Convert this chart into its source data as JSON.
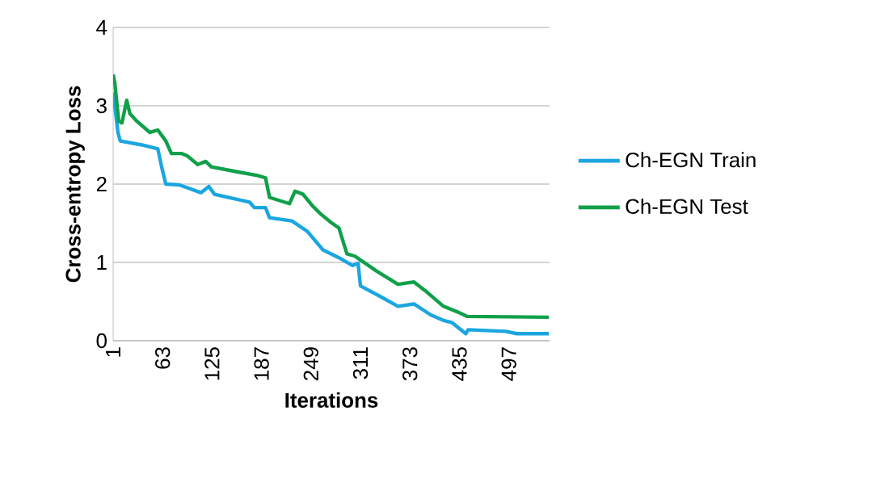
{
  "chart_data": {
    "type": "line",
    "xlabel": "Iterations",
    "ylabel": "Cross-entropy Loss",
    "xlim": [
      1,
      548
    ],
    "xticks": [
      1,
      63,
      125,
      187,
      249,
      311,
      373,
      435,
      497
    ],
    "ylim": [
      0,
      4
    ],
    "yticks": [
      0,
      1,
      2,
      3,
      4
    ],
    "grid": "y",
    "legend": "right",
    "marker": "none",
    "line_style": "solid",
    "series": [
      {
        "name": "Ch-EGN Train",
        "color": "#1ba6e0",
        "x": [
          1,
          7,
          10,
          37,
          57,
          62,
          67,
          84,
          111,
          121,
          128,
          172,
          178,
          192,
          197,
          225,
          244,
          264,
          284,
          301,
          308,
          311,
          335,
          358,
          378,
          399,
          415,
          426,
          443,
          446,
          493,
          507,
          547
        ],
        "values": [
          3.17,
          2.66,
          2.55,
          2.5,
          2.45,
          2.21,
          2.0,
          1.99,
          1.89,
          1.97,
          1.87,
          1.77,
          1.7,
          1.7,
          1.57,
          1.53,
          1.4,
          1.16,
          1.06,
          0.96,
          0.99,
          0.7,
          0.57,
          0.44,
          0.47,
          0.33,
          0.26,
          0.23,
          0.09,
          0.14,
          0.12,
          0.09,
          0.09
        ]
      },
      {
        "name": "Ch-EGN Test",
        "color": "#10a04a",
        "x": [
          1,
          3,
          8,
          12,
          18,
          22,
          31,
          47,
          57,
          67,
          74,
          87,
          94,
          107,
          117,
          124,
          155,
          182,
          192,
          197,
          222,
          229,
          239,
          251,
          261,
          274,
          284,
          294,
          304,
          331,
          358,
          378,
          392,
          415,
          432,
          445,
          547
        ],
        "values": [
          3.4,
          3.3,
          2.8,
          2.78,
          3.07,
          2.9,
          2.8,
          2.66,
          2.69,
          2.55,
          2.39,
          2.39,
          2.36,
          2.25,
          2.29,
          2.22,
          2.16,
          2.11,
          2.08,
          1.83,
          1.75,
          1.91,
          1.87,
          1.72,
          1.62,
          1.51,
          1.44,
          1.11,
          1.08,
          0.89,
          0.72,
          0.75,
          0.64,
          0.44,
          0.37,
          0.31,
          0.3
        ]
      }
    ]
  }
}
